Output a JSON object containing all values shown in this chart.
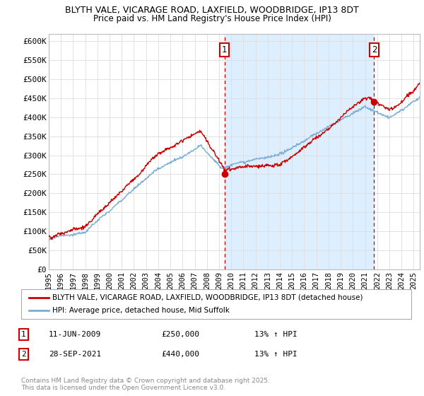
{
  "title": "BLYTH VALE, VICARAGE ROAD, LAXFIELD, WOODBRIDGE, IP13 8DT",
  "subtitle": "Price paid vs. HM Land Registry's House Price Index (HPI)",
  "ylabel_ticks": [
    "£0",
    "£50K",
    "£100K",
    "£150K",
    "£200K",
    "£250K",
    "£300K",
    "£350K",
    "£400K",
    "£450K",
    "£500K",
    "£550K",
    "£600K"
  ],
  "ytick_values": [
    0,
    50000,
    100000,
    150000,
    200000,
    250000,
    300000,
    350000,
    400000,
    450000,
    500000,
    550000,
    600000
  ],
  "ylim": [
    0,
    620000
  ],
  "legend_entry1": "BLYTH VALE, VICARAGE ROAD, LAXFIELD, WOODBRIDGE, IP13 8DT (detached house)",
  "legend_entry2": "HPI: Average price, detached house, Mid Suffolk",
  "annotation1_label": "1",
  "annotation1_date": "11-JUN-2009",
  "annotation1_price": "£250,000",
  "annotation1_hpi": "13% ↑ HPI",
  "annotation2_label": "2",
  "annotation2_date": "28-SEP-2021",
  "annotation2_price": "£440,000",
  "annotation2_hpi": "13% ↑ HPI",
  "copyright_text": "Contains HM Land Registry data © Crown copyright and database right 2025.\nThis data is licensed under the Open Government Licence v3.0.",
  "line1_color": "#cc0000",
  "line2_color": "#7aaed6",
  "shade_color": "#ddeeff",
  "background_color": "#ffffff",
  "grid_color": "#dddddd",
  "point1_x": 2009.44,
  "point1_y": 250000,
  "point2_x": 2021.75,
  "point2_y": 440000,
  "xmin": 1995,
  "xmax": 2025.5
}
